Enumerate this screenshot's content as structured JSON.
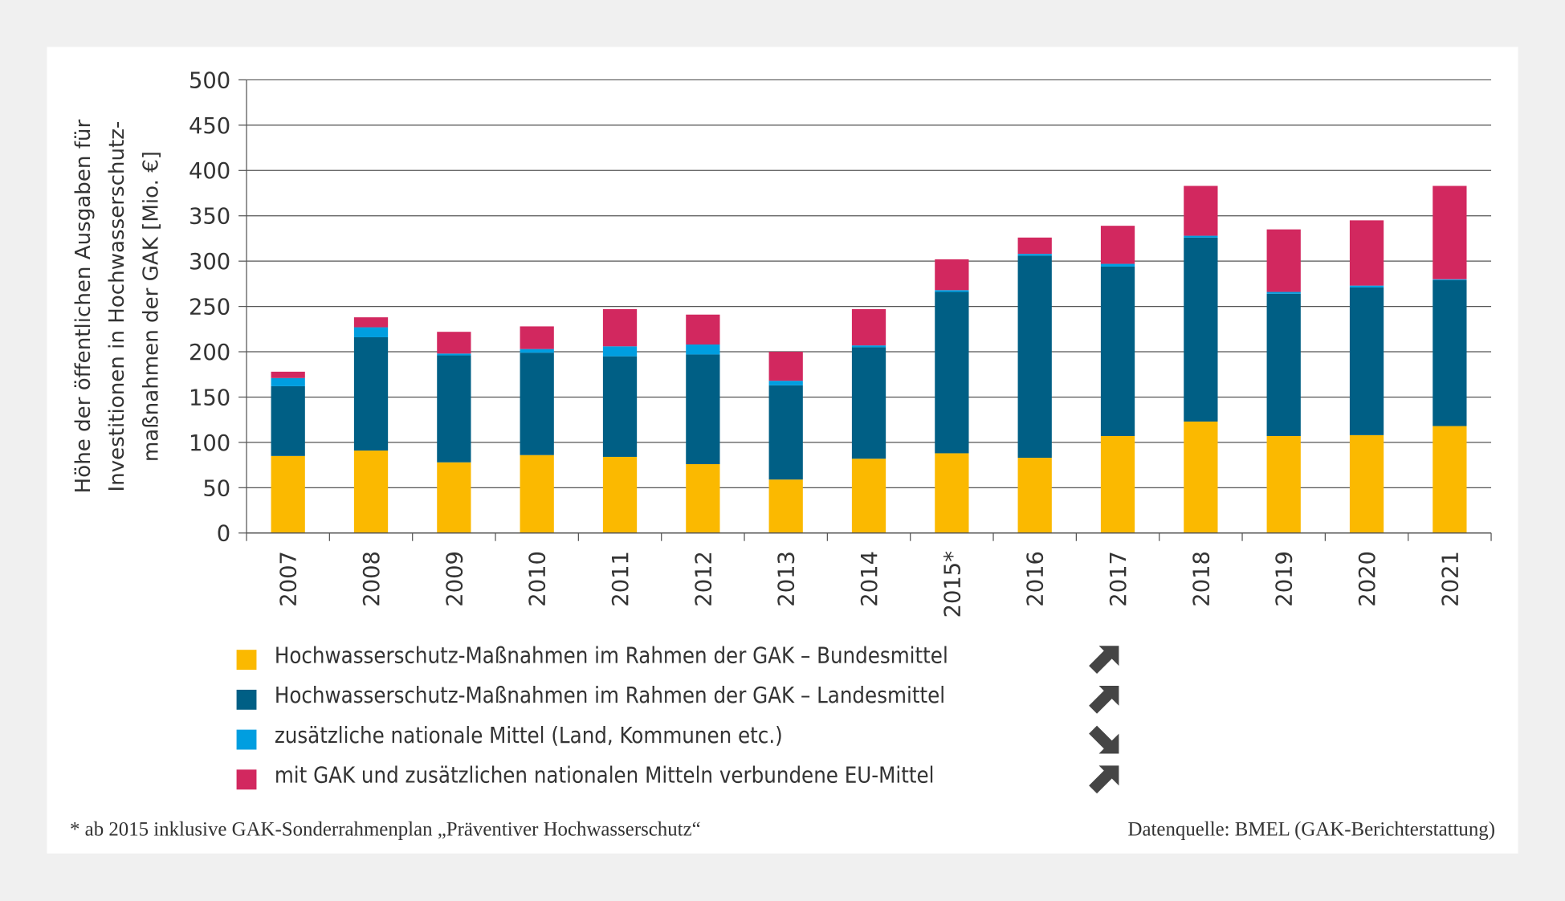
{
  "chart_data": {
    "type": "bar",
    "stacked": true,
    "ylabel": "Höhe der öffentlichen Ausgaben für Investitionen in Hochwasserschutz-maßnahmen der GAK [Mio. €]",
    "ylabel_lines": [
      "Höhe der öffentlichen Ausgaben für",
      "Investitionen in Hochwasserschutz-",
      "maßnahmen der GAK [Mio. €]"
    ],
    "ylim": [
      0,
      500
    ],
    "yticks": [
      0,
      50,
      100,
      150,
      200,
      250,
      300,
      350,
      400,
      450,
      500
    ],
    "grid": true,
    "categories": [
      "2007",
      "2008",
      "2009",
      "2010",
      "2011",
      "2012",
      "2013",
      "2014",
      "2015*",
      "2016",
      "2017",
      "2018",
      "2019",
      "2020",
      "2021"
    ],
    "series": [
      {
        "name": "Hochwasserschutz-Maßnahmen im Rahmen der GAK – Bundesmittel",
        "color": "#fbb900",
        "trend": "up",
        "values": [
          85,
          91,
          78,
          86,
          84,
          76,
          59,
          82,
          88,
          83,
          107,
          123,
          107,
          108,
          118
        ]
      },
      {
        "name": "Hochwasserschutz-Maßnahmen im Rahmen der GAK – Landesmittel",
        "color": "#005f85",
        "trend": "up",
        "values": [
          77,
          125,
          118,
          113,
          111,
          121,
          104,
          123,
          178,
          223,
          187,
          203,
          157,
          163,
          161
        ]
      },
      {
        "name": "zusätzliche nationale Mittel (Land, Kommunen etc.)",
        "color": "#009ee0",
        "trend": "down",
        "values": [
          9,
          11,
          2,
          4,
          11,
          11,
          5,
          2,
          2,
          2,
          3,
          2,
          2,
          2,
          1
        ]
      },
      {
        "name": "mit GAK und zusätzlichen nationalen Mitteln verbundene EU-Mittel",
        "color": "#d2285f",
        "trend": "up",
        "values": [
          7,
          11,
          24,
          25,
          41,
          33,
          32,
          40,
          34,
          18,
          42,
          55,
          69,
          72,
          103
        ]
      }
    ],
    "legend_position": "bottom"
  },
  "footnote": "* ab 2015 inklusive GAK-Sonderrahmenplan „Präventiver Hochwasserschutz“",
  "source": "Datenquelle: BMEL (GAK-Berichterstattung)"
}
